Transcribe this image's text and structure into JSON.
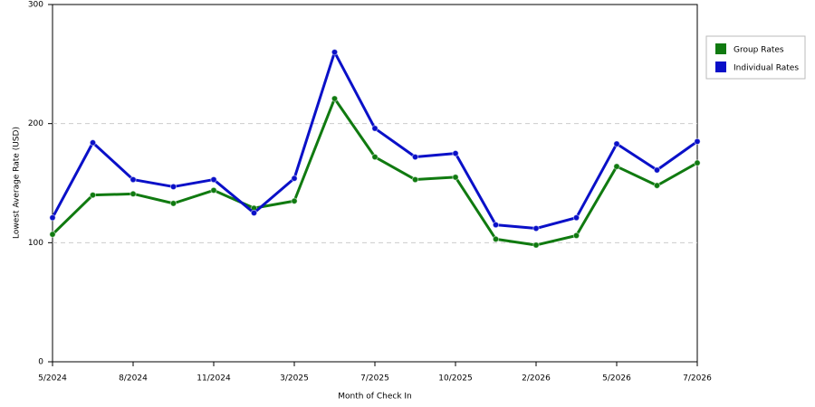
{
  "chart_data": {
    "type": "line",
    "x_label": "Month of Check In",
    "y_label": "Lowest Average Rate (USD)",
    "categories": [
      "5/2024",
      null,
      "8/2024",
      null,
      "11/2024",
      null,
      "3/2025",
      null,
      "7/2025",
      null,
      "10/2025",
      null,
      "2/2026",
      null,
      "5/2026",
      null,
      "7/2026"
    ],
    "series": [
      {
        "name": "Group Rates",
        "color": "#107a10",
        "values": [
          107,
          140,
          141,
          133,
          144,
          129,
          135,
          221,
          172,
          153,
          155,
          103,
          98,
          106,
          164,
          148,
          167
        ]
      },
      {
        "name": "Individual Rates",
        "color": "#0a10c8",
        "values": [
          121,
          184,
          153,
          147,
          153,
          125,
          154,
          260,
          196,
          172,
          175,
          115,
          112,
          121,
          183,
          161,
          185
        ]
      }
    ],
    "ylim": [
      0,
      300
    ],
    "yticks": [
      0,
      100,
      200,
      300
    ],
    "grid": true,
    "legend": "right"
  }
}
